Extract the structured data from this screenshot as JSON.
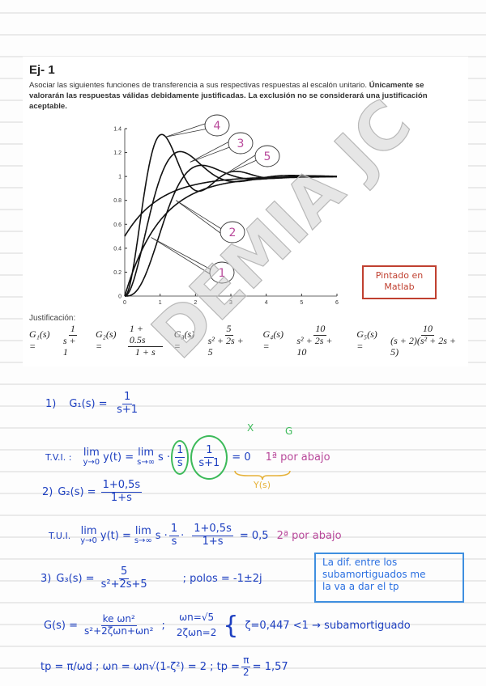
{
  "exercise": {
    "title": "Ej- 1",
    "statement_normal": "Asociar las siguientes funciones de transferencia a sus respectivas respuestas al escalón unitario. ",
    "statement_bold": "Únicamente se valorarán las respuestas válidas debidamente justificadas. La exclusión no se considerará una justificación aceptable.",
    "justification_label": "Justificación:",
    "transfer_functions": [
      {
        "label": "G₁(s) =",
        "num": "1",
        "den": "s + 1"
      },
      {
        "label": "G₂(s) =",
        "num": "1 + 0.5s",
        "den": "1 + s"
      },
      {
        "label": "G₃(s) =",
        "num": "5",
        "den": "s² + 2s + 5"
      },
      {
        "label": "G₄(s) =",
        "num": "10",
        "den": "s² + 2s + 10"
      },
      {
        "label": "G₅(s) =",
        "num": "10",
        "den": "(s + 2)(s² + 2s + 5)"
      }
    ],
    "matlab_note": [
      "Pintado en",
      "Matlab"
    ],
    "watermark": "DEMIA JC"
  },
  "chart_data": {
    "type": "line",
    "title": "",
    "xlabel": "",
    "ylabel": "",
    "xlim": [
      0,
      6
    ],
    "ylim": [
      0,
      1.4
    ],
    "xticks": [
      "0",
      "1",
      "2",
      "3",
      "4",
      "5",
      "6"
    ],
    "yticks": [
      "0",
      "0.2",
      "0.4",
      "0.6",
      "0.8",
      "1",
      "1.2",
      "1.4"
    ],
    "grid": false,
    "line_color": "#111111",
    "callout_color": "#b8489a",
    "series": [
      {
        "name": "1",
        "num": [
          1
        ],
        "den": [
          1,
          1
        ],
        "final_value": 1,
        "initial_value": 0
      },
      {
        "name": "2",
        "num": [
          0.5,
          1
        ],
        "den": [
          1,
          1
        ],
        "final_value": 1,
        "initial_value": 0.5
      },
      {
        "name": "3",
        "num": [
          5
        ],
        "den": [
          1,
          2,
          5
        ],
        "peak": 1.21,
        "peak_time": 1.57
      },
      {
        "name": "4",
        "num": [
          10
        ],
        "den": [
          1,
          2,
          10
        ],
        "peak": 1.35,
        "peak_time": 1.05
      },
      {
        "name": "5",
        "num": [
          10
        ],
        "den": [
          1,
          4,
          9,
          10
        ],
        "peak": 1.04,
        "peak_time": 3.1
      }
    ]
  },
  "notes": {
    "n1_label": "1)",
    "n1_g": "G₁(s) =",
    "n1_num": "1",
    "n1_den": "s+1",
    "tvi1": "T.V.I. :",
    "lim": "lim",
    "lim_sub_t": "y→0",
    "lim_sub_s": "s→∞",
    "yt": "y(t) =",
    "s_dot": "s ·",
    "x_num": "1",
    "x_den": "s",
    "g_num": "1",
    "g_den": "s+1",
    "eq0": "= 0",
    "x_label": "X",
    "g_label": "G",
    "ys_label": "Y(s)",
    "result1": "1ª por abajo",
    "n2_label": "2)",
    "n2_g": "G₂(s) =",
    "n2_num": "1+0,5s",
    "n2_den": "1+s",
    "tvi2": "T.U.I.",
    "lim_sub_t2": "y→0",
    "one_s_num": "1",
    "one_s_den": "s",
    "eq05": "= 0,5",
    "result2": "2ª por abajo",
    "box_note": [
      "La dif. entre los",
      "subamortiguados me",
      "la va a dar el tp"
    ],
    "n3_label": "3)",
    "n3_g": "G₃(s) =",
    "n3_num": "5",
    "n3_den": "s²+2s+5",
    "poles": "; polos = -1±2j",
    "gs": "G(s) =",
    "gs_num": "ke ωn²",
    "gs_den": "s²+2ζωn+ωn²",
    "wn": "ωn=√5",
    "zwn": "2ζωn=2",
    "brace": "{",
    "zeta": "ζ=0,447 <1 → subamortiguado",
    "tp_line1": "tp = π/ωd  ;  ωn = ωn√(1-ζ²) = 2  ;  tp =",
    "tp_num": "π",
    "tp_den": "2",
    "tp_result": "= 1,57"
  }
}
